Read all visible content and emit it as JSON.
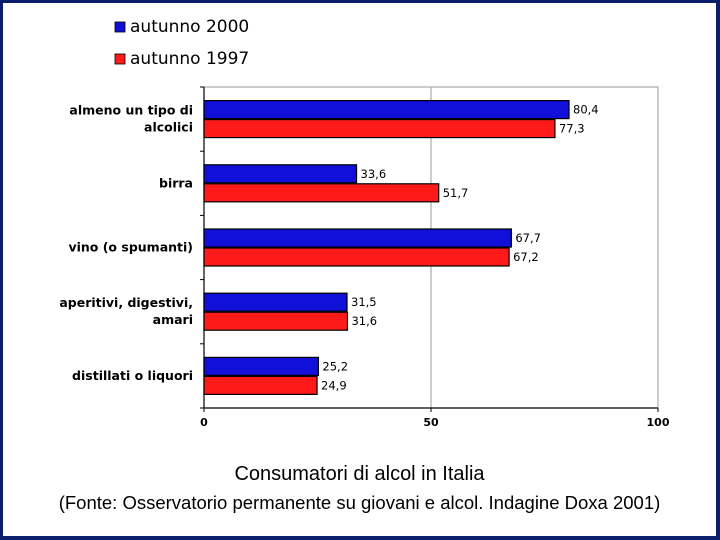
{
  "chart_data": {
    "type": "bar",
    "orientation": "horizontal",
    "categories": [
      [
        "almeno un tipo di",
        "alcolici"
      ],
      [
        "birra"
      ],
      [
        "vino (o spumanti)"
      ],
      [
        "aperitivi, digestivi,",
        "amari"
      ],
      [
        "distillati o liquori"
      ]
    ],
    "series": [
      {
        "name": "autunno 2000",
        "color": "#1010d8",
        "values": [
          80.4,
          33.6,
          67.7,
          31.5,
          25.2
        ],
        "labels": [
          "80,4",
          "33,6",
          "67,7",
          "31,5",
          "25,2"
        ]
      },
      {
        "name": "autunno 1997",
        "color": "#ff1a1a",
        "values": [
          77.3,
          51.7,
          67.2,
          31.6,
          24.9
        ],
        "labels": [
          "77,3",
          "51,7",
          "67,2",
          "31,6",
          "24,9"
        ]
      }
    ],
    "xlim": [
      0,
      100
    ],
    "xticks": [
      0,
      50,
      100
    ],
    "legend": "top-left"
  },
  "caption": {
    "title": "Consumatori di alcol in Italia",
    "source": "(Fonte: Osservatorio permanente su giovani e alcol. Indagine Doxa 2001)"
  }
}
